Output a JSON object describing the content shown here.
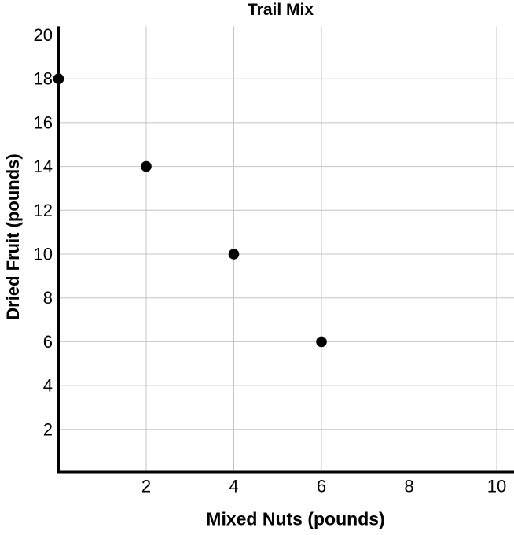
{
  "chart_data": {
    "type": "scatter",
    "title": "Trail Mix",
    "xlabel": "Mixed Nuts (pounds)",
    "ylabel": "Dried Fruit (pounds)",
    "points": [
      {
        "x": 0,
        "y": 18
      },
      {
        "x": 2,
        "y": 14
      },
      {
        "x": 4,
        "y": 10
      },
      {
        "x": 6,
        "y": 6
      }
    ],
    "x_ticks": [
      2,
      4,
      6,
      8,
      10
    ],
    "y_ticks": [
      2,
      4,
      6,
      8,
      10,
      12,
      14,
      16,
      18,
      20
    ],
    "xlim": [
      0,
      10.4
    ],
    "ylim": [
      0,
      20.4
    ],
    "grid": true,
    "legend": false,
    "colors": {
      "background": "#ffffff",
      "grid": "#c4c4c4",
      "axis": "#000000",
      "point": "#000000",
      "text": "#000000"
    }
  }
}
